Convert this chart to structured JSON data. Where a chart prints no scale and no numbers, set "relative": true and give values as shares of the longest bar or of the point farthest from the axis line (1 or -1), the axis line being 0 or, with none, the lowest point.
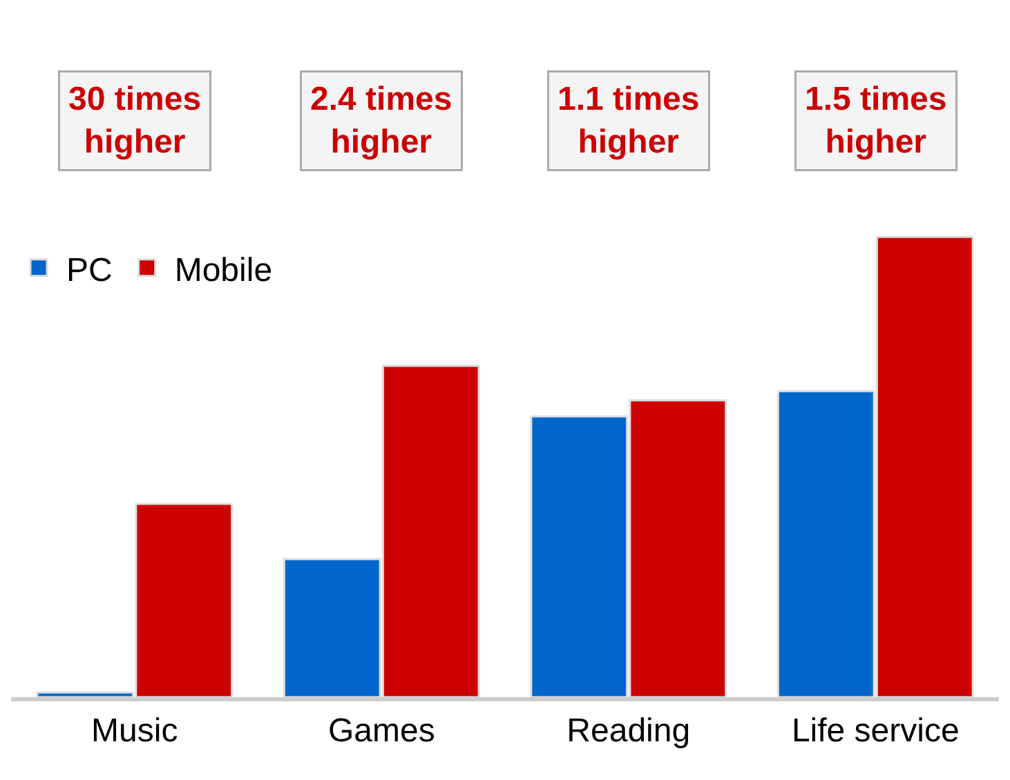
{
  "chart_data": {
    "type": "bar",
    "relative": true,
    "categories": [
      "Music",
      "Games",
      "Reading",
      "Life service"
    ],
    "series": [
      {
        "name": "PC",
        "color": "#0066cc",
        "values": [
          0.01,
          0.3,
          0.61,
          0.665
        ]
      },
      {
        "name": "Mobile",
        "color": "#cc0000",
        "values": [
          0.42,
          0.72,
          0.645,
          1
        ]
      }
    ],
    "annotations": [
      "30 times\nhigher",
      "2.4 times\nhigher",
      "1.1 times\nhigher",
      "1.5 times\nhigher"
    ],
    "legend": "top left"
  }
}
